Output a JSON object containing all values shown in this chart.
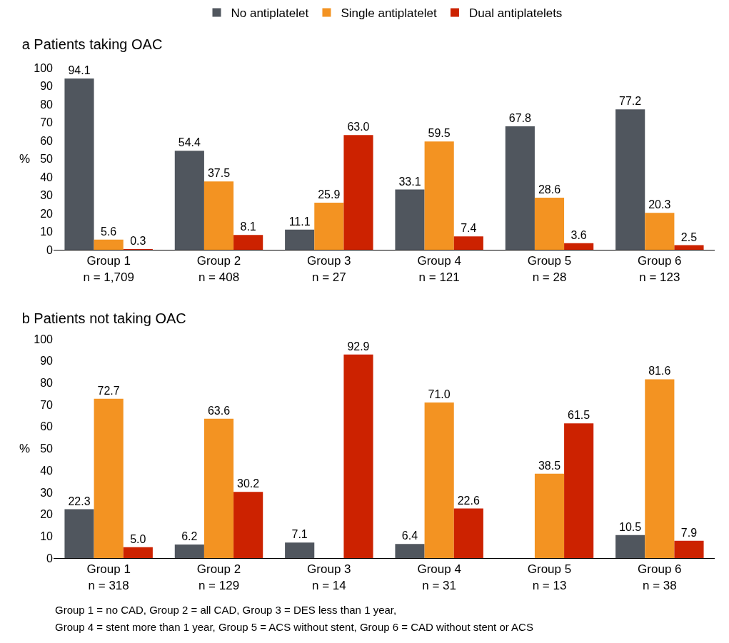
{
  "chart_data": [
    {
      "type": "bar",
      "title": "a Patients taking OAC",
      "ylabel": "%",
      "categories": [
        "Group 1\nn = 1,709",
        "Group 2\nn = 408",
        "Group 3\nn = 27",
        "Group 4\nn = 121",
        "Group 5\nn = 28",
        "Group 6\nn = 123"
      ],
      "series": [
        {
          "name": "No antiplatelet",
          "color": "#50565e",
          "values": [
            94.1,
            54.4,
            11.1,
            33.1,
            67.8,
            77.2
          ],
          "value_labels": [
            "94.1",
            "54.4",
            "11.1",
            "33.1",
            "67.8",
            "77.2"
          ]
        },
        {
          "name": "Single antiplatelet",
          "color": "#f39322",
          "values": [
            5.6,
            37.5,
            25.9,
            59.5,
            28.6,
            20.3
          ],
          "value_labels": [
            "5.6",
            "37.5",
            "25.9",
            "59.5",
            "28.6",
            "20.3"
          ]
        },
        {
          "name": "Dual antiplatelets",
          "color": "#cc2200",
          "values": [
            0.3,
            8.1,
            63.0,
            7.4,
            3.6,
            2.5
          ],
          "value_labels": [
            "0.3",
            "8.1",
            "63.0",
            "7.4",
            "3.6",
            "2.5"
          ]
        }
      ],
      "ylim": [
        0,
        100
      ],
      "yticks": [
        0,
        10,
        20,
        30,
        40,
        50,
        60,
        70,
        80,
        90,
        100
      ],
      "grid": false,
      "legend": "top"
    },
    {
      "type": "bar",
      "title": "b Patients not taking OAC",
      "ylabel": "%",
      "categories": [
        "Group 1\nn = 318",
        "Group 2\nn = 129",
        "Group 3\nn = 14",
        "Group 4\nn = 31",
        "Group 5\nn = 13",
        "Group 6\nn = 38"
      ],
      "series": [
        {
          "color": "#50565e",
          "values": [
            22.3,
            6.2,
            7.1,
            6.4,
            null,
            10.5
          ],
          "value_labels": [
            "22.3",
            "6.2",
            "7.1",
            "6.4",
            null,
            "10.5"
          ]
        },
        {
          "color": "#f39322",
          "values": [
            72.7,
            63.6,
            null,
            71.0,
            38.5,
            81.6
          ],
          "value_labels": [
            "72.7",
            "63.6",
            null,
            "71.0",
            "38.5",
            "81.6"
          ]
        },
        {
          "color": "#cc2200",
          "values": [
            5.0,
            30.2,
            92.9,
            22.6,
            61.5,
            7.9
          ],
          "value_labels": [
            "5.0",
            "30.2",
            "92.9",
            "22.6",
            "61.5",
            "7.9"
          ]
        }
      ],
      "ylim": [
        0,
        100
      ],
      "yticks": [
        0,
        10,
        20,
        30,
        40,
        50,
        60,
        70,
        80,
        90,
        100
      ],
      "grid": false,
      "legend": false,
      "annotations": [
        "Group 1 = no CAD, Group 2 = all CAD, Group 3 = DES less than 1 year,",
        "Group 4 = stent more than 1 year, Group 5 = ACS without stent, Group 6 = CAD without stent or ACS"
      ]
    }
  ]
}
